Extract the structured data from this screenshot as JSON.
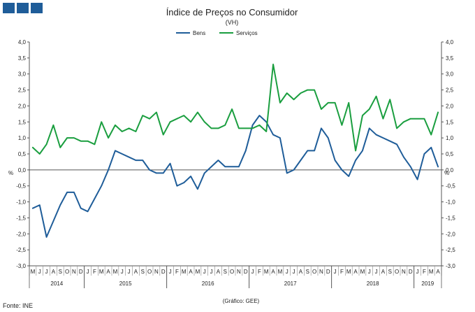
{
  "branding": {
    "logo_icon": "gee-logo-squares-icon",
    "color": "#1f5d99"
  },
  "chart_data": {
    "type": "line",
    "title": "Índice de Preços no Consumidor",
    "subtitle": "(VH)",
    "ylabel_left": "%",
    "ylabel_right": "%",
    "ylim": [
      -3.0,
      4.0
    ],
    "ytick_step": 0.5,
    "grid": false,
    "legend_position": "top-center",
    "source": "Fonte: INE",
    "credit": "(Gráfico: GEE)",
    "month_labels": [
      "M",
      "J",
      "J",
      "A",
      "S",
      "O",
      "N",
      "D",
      "J",
      "F",
      "M",
      "A",
      "M",
      "J",
      "J",
      "A",
      "S",
      "O",
      "N",
      "D",
      "J",
      "F",
      "M",
      "A",
      "M",
      "J",
      "J",
      "A",
      "S",
      "O",
      "N",
      "D",
      "J",
      "F",
      "M",
      "A",
      "M",
      "J",
      "J",
      "A",
      "S",
      "O",
      "N",
      "D",
      "J",
      "F",
      "M",
      "A",
      "M",
      "J",
      "J",
      "A",
      "S",
      "O",
      "N",
      "D",
      "J",
      "F",
      "M",
      "A"
    ],
    "year_groups": [
      {
        "label": "2014",
        "start": 0,
        "count": 8
      },
      {
        "label": "2015",
        "start": 8,
        "count": 12
      },
      {
        "label": "2016",
        "start": 20,
        "count": 12
      },
      {
        "label": "2017",
        "start": 32,
        "count": 12
      },
      {
        "label": "2018",
        "start": 44,
        "count": 12
      },
      {
        "label": "2019",
        "start": 56,
        "count": 4
      }
    ],
    "series": [
      {
        "name": "Bens",
        "color": "#1f5d99",
        "values": [
          -1.2,
          -1.1,
          -2.1,
          -1.6,
          -1.1,
          -0.7,
          -0.7,
          -1.2,
          -1.3,
          -0.9,
          -0.5,
          0.0,
          0.6,
          0.5,
          0.4,
          0.3,
          0.3,
          0.0,
          -0.1,
          -0.1,
          0.2,
          -0.5,
          -0.4,
          -0.2,
          -0.6,
          -0.1,
          0.1,
          0.3,
          0.1,
          0.1,
          0.1,
          0.6,
          1.4,
          1.7,
          1.5,
          1.1,
          1.0,
          -0.1,
          0.0,
          0.3,
          0.6,
          0.6,
          1.3,
          1.0,
          0.3,
          0.0,
          -0.2,
          0.3,
          0.6,
          1.3,
          1.1,
          1.0,
          0.9,
          0.8,
          0.4,
          0.1,
          -0.3,
          0.5,
          0.7,
          0.1
        ]
      },
      {
        "name": "Serviços",
        "color": "#1a9e3f",
        "values": [
          0.7,
          0.5,
          0.8,
          1.4,
          0.7,
          1.0,
          1.0,
          0.9,
          0.9,
          0.8,
          1.5,
          1.0,
          1.4,
          1.2,
          1.3,
          1.2,
          1.7,
          1.6,
          1.8,
          1.1,
          1.5,
          1.6,
          1.7,
          1.5,
          1.8,
          1.5,
          1.3,
          1.3,
          1.4,
          1.9,
          1.3,
          1.3,
          1.3,
          1.4,
          1.2,
          3.3,
          2.1,
          2.4,
          2.2,
          2.4,
          2.5,
          2.5,
          1.9,
          2.1,
          2.1,
          1.4,
          2.1,
          0.6,
          1.7,
          1.9,
          2.3,
          1.6,
          2.2,
          1.3,
          1.5,
          1.6,
          1.6,
          1.6,
          1.1,
          1.8
        ]
      }
    ]
  }
}
